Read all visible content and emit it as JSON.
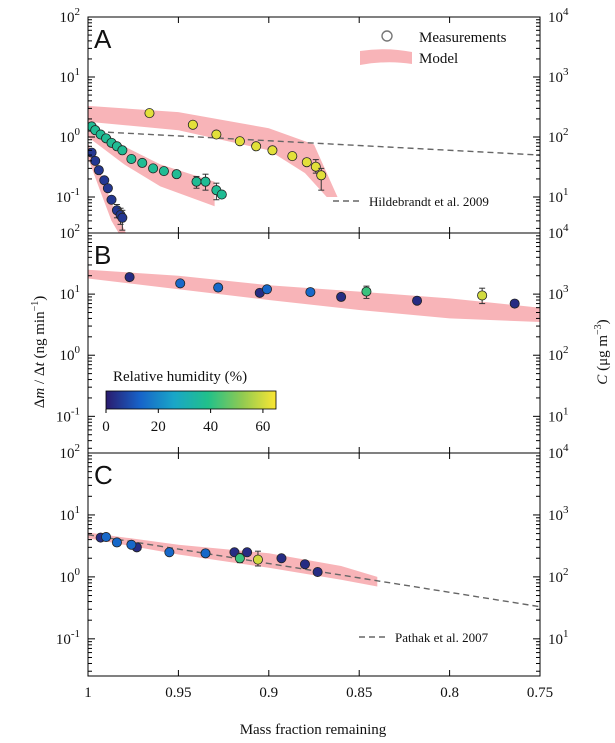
{
  "chart_data": {
    "type": "scatter",
    "xlabel": "Mass fraction remaining",
    "ylabel_left": "Δm / Δt (ng min⁻¹)",
    "ylabel_left_parts": {
      "base": "Δ",
      "m": "m",
      "mid": " / Δ",
      "t": "t",
      "unit": " (ng min",
      "exp": "−1",
      "close": ")"
    },
    "ylabel_right_parts": {
      "c": "C",
      "unit": " (μg m",
      "exp": "−3",
      "close": ")"
    },
    "x_ticks": [
      "1",
      "0.95",
      "0.9",
      "0.85",
      "0.8",
      "0.75"
    ],
    "x_tick_values": [
      1.0,
      0.95,
      0.9,
      0.85,
      0.8,
      0.75
    ],
    "xlim": [
      1.0,
      0.75
    ],
    "left_tick_exponents": [
      "-1",
      "0",
      "1",
      "2"
    ],
    "right_tick_exponents": [
      "1",
      "2",
      "3",
      "4"
    ],
    "colorbar": {
      "label": "Relative humidity (%)",
      "ticks": [
        "0",
        "20",
        "40",
        "60"
      ],
      "range": [
        0,
        65
      ],
      "stops": [
        "#2a1b6e",
        "#1763c9",
        "#19a6c8",
        "#21c08a",
        "#8fca52",
        "#fbe633"
      ]
    },
    "legend": {
      "placement": "top-right",
      "entries": [
        {
          "label": "Measurements",
          "marker": "open-circle"
        },
        {
          "label": "Model",
          "marker": "band"
        }
      ]
    },
    "colors": {
      "model_band": "#f7a7ab",
      "reference_line": "#666666"
    },
    "panels": [
      {
        "letter": "A",
        "ylim_log": [
          -1.6,
          2
        ],
        "reference": {
          "label": "Hildebrandt et al. 2009",
          "line": [
            [
              1.0,
              1.25
            ],
            [
              0.75,
              0.5
            ]
          ]
        },
        "bands": [
          {
            "upper": [
              [
                1.0,
                3.3
              ],
              [
                0.95,
                2.6
              ],
              [
                0.9,
                1.4
              ],
              [
                0.875,
                0.75
              ],
              [
                0.862,
                0.1
              ]
            ],
            "lower": [
              [
                1.0,
                1.8
              ],
              [
                0.95,
                1.3
              ],
              [
                0.9,
                0.6
              ],
              [
                0.88,
                0.25
              ],
              [
                0.868,
                0.1
              ]
            ]
          },
          {
            "upper": [
              [
                1.0,
                1.8
              ],
              [
                0.98,
                0.7
              ],
              [
                0.96,
                0.35
              ],
              [
                0.93,
                0.18
              ]
            ],
            "lower": [
              [
                1.0,
                1.0
              ],
              [
                0.98,
                0.35
              ],
              [
                0.96,
                0.15
              ],
              [
                0.93,
                0.07
              ]
            ]
          },
          {
            "upper": [
              [
                1.0,
                0.8
              ],
              [
                0.993,
                0.25
              ],
              [
                0.987,
                0.08
              ],
              [
                0.979,
                0.025
              ]
            ],
            "lower": [
              [
                1.0,
                0.45
              ],
              [
                0.993,
                0.12
              ],
              [
                0.987,
                0.04
              ],
              [
                0.983,
                0.025
              ]
            ]
          }
        ],
        "series": [
          {
            "rh": 62,
            "points": [
              [
                0.966,
                2.5
              ],
              [
                0.942,
                1.6
              ],
              [
                0.929,
                1.1
              ],
              [
                0.916,
                0.85
              ],
              [
                0.907,
                0.7
              ],
              [
                0.898,
                0.6
              ],
              [
                0.887,
                0.48
              ],
              [
                0.879,
                0.38
              ],
              [
                0.874,
                0.32
              ],
              [
                0.871,
                0.23
              ]
            ],
            "err": [
              null,
              null,
              null,
              null,
              null,
              null,
              null,
              null,
              [
                0.25,
                0.42
              ],
              [
                0.13,
                0.3
              ]
            ]
          },
          {
            "rh": 37,
            "points": [
              [
                0.998,
                1.5
              ],
              [
                0.996,
                1.3
              ],
              [
                0.993,
                1.1
              ],
              [
                0.99,
                0.95
              ],
              [
                0.987,
                0.8
              ],
              [
                0.984,
                0.7
              ],
              [
                0.981,
                0.6
              ],
              [
                0.976,
                0.43
              ],
              [
                0.97,
                0.37
              ],
              [
                0.964,
                0.3
              ],
              [
                0.958,
                0.27
              ],
              [
                0.951,
                0.24
              ],
              [
                0.94,
                0.18
              ],
              [
                0.935,
                0.18
              ],
              [
                0.929,
                0.13
              ],
              [
                0.926,
                0.11
              ]
            ],
            "err": [
              null,
              null,
              null,
              null,
              null,
              null,
              null,
              null,
              null,
              null,
              null,
              null,
              [
                0.14,
                0.22
              ],
              [
                0.13,
                0.24
              ],
              [
                0.09,
                0.17
              ],
              null
            ]
          },
          {
            "rh": 5,
            "points": [
              [
                0.998,
                0.55
              ],
              [
                0.996,
                0.4
              ],
              [
                0.994,
                0.28
              ],
              [
                0.991,
                0.19
              ],
              [
                0.989,
                0.14
              ],
              [
                0.987,
                0.09
              ],
              [
                0.984,
                0.06
              ],
              [
                0.982,
                0.05
              ],
              [
                0.981,
                0.045
              ]
            ],
            "err": [
              null,
              null,
              null,
              null,
              null,
              null,
              [
                0.045,
                0.075
              ],
              [
                0.035,
                0.065
              ],
              [
                0.028,
                0.06
              ]
            ]
          }
        ]
      },
      {
        "letter": "B",
        "ylim_log": [
          -1.6,
          2
        ],
        "bands": [
          {
            "upper": [
              [
                1.0,
                25
              ],
              [
                0.95,
                20
              ],
              [
                0.9,
                14
              ],
              [
                0.85,
                11
              ],
              [
                0.8,
                8.5
              ],
              [
                0.75,
                6
              ]
            ],
            "lower": [
              [
                1.0,
                18
              ],
              [
                0.95,
                12
              ],
              [
                0.9,
                8
              ],
              [
                0.85,
                5.5
              ],
              [
                0.8,
                4
              ],
              [
                0.75,
                3.5
              ]
            ]
          }
        ],
        "series": [
          {
            "rh": 3,
            "points": [
              [
                0.977,
                19.0
              ],
              [
                0.905,
                10.5
              ],
              [
                0.86,
                9.0
              ],
              [
                0.818,
                7.8
              ],
              [
                0.764,
                7.0
              ]
            ],
            "err": [
              null,
              null,
              null,
              null,
              null
            ]
          },
          {
            "rh": 14,
            "points": [
              [
                0.949,
                15.0
              ],
              [
                0.928,
                12.8
              ],
              [
                0.901,
                12.0
              ],
              [
                0.877,
                10.8
              ]
            ],
            "err": [
              null,
              null,
              null,
              null
            ]
          },
          {
            "rh": 42,
            "points": [
              [
                0.846,
                11.0
              ]
            ],
            "err": [
              [
                8.5,
                13.5
              ]
            ]
          },
          {
            "rh": 60,
            "points": [
              [
                0.782,
                9.5
              ]
            ],
            "err": [
              [
                7.0,
                12.5
              ]
            ]
          }
        ]
      },
      {
        "letter": "C",
        "ylim_log": [
          -1.6,
          2
        ],
        "reference": {
          "label": "Pathak et al. 2007",
          "line": [
            [
              1.0,
              4.8
            ],
            [
              0.75,
              0.33
            ]
          ]
        },
        "bands": [
          {
            "upper": [
              [
                1.0,
                5.2
              ],
              [
                0.95,
                3.3
              ],
              [
                0.9,
                2.4
              ],
              [
                0.86,
                1.5
              ],
              [
                0.84,
                1.0
              ]
            ],
            "lower": [
              [
                1.0,
                4.2
              ],
              [
                0.95,
                2.3
              ],
              [
                0.9,
                1.4
              ],
              [
                0.86,
                0.9
              ],
              [
                0.84,
                0.7
              ]
            ]
          }
        ],
        "series": [
          {
            "rh": 3,
            "points": [
              [
                0.993,
                4.3
              ],
              [
                0.973,
                3.0
              ],
              [
                0.919,
                2.5
              ],
              [
                0.912,
                2.5
              ],
              [
                0.893,
                2.0
              ],
              [
                0.88,
                1.6
              ],
              [
                0.873,
                1.2
              ]
            ],
            "err": [
              null,
              null,
              null,
              null,
              null,
              null,
              null
            ]
          },
          {
            "rh": 14,
            "points": [
              [
                0.99,
                4.4
              ],
              [
                0.984,
                3.6
              ],
              [
                0.976,
                3.3
              ],
              [
                0.955,
                2.5
              ],
              [
                0.935,
                2.4
              ]
            ],
            "err": [
              null,
              null,
              null,
              null,
              null
            ]
          },
          {
            "rh": 42,
            "points": [
              [
                0.916,
                2.0
              ]
            ],
            "err": [
              [
                1.7,
                2.4
              ]
            ]
          },
          {
            "rh": 60,
            "points": [
              [
                0.906,
                1.9
              ]
            ],
            "err": [
              [
                1.5,
                2.6
              ]
            ]
          }
        ]
      }
    ]
  }
}
